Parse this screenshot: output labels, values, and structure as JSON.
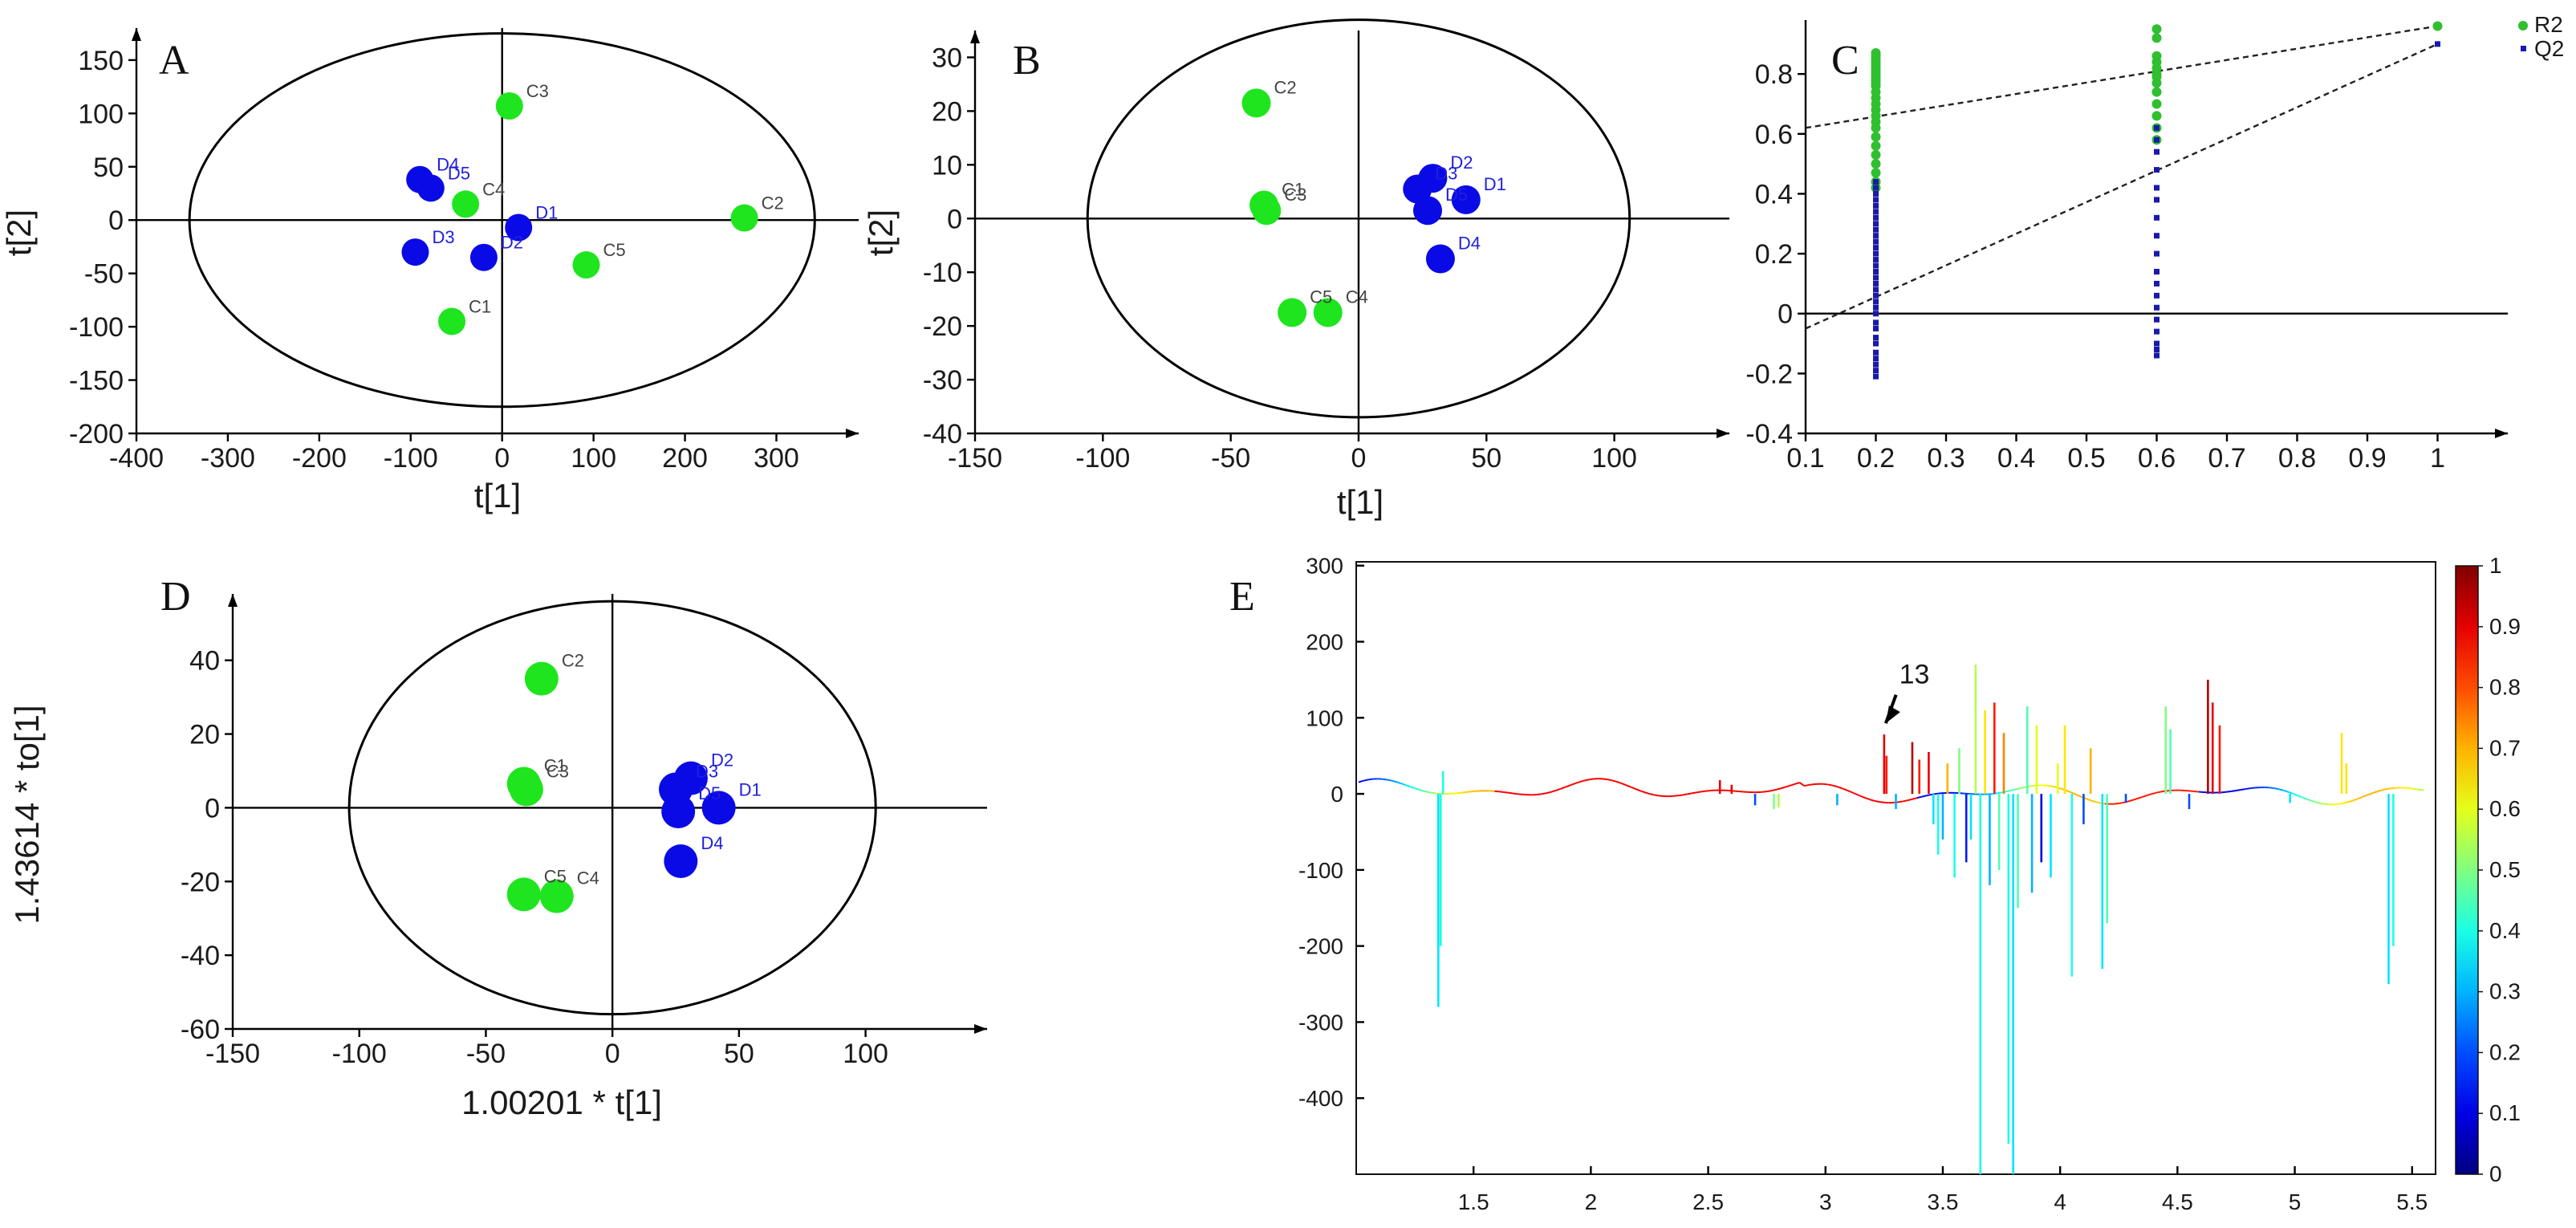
{
  "colors": {
    "control": "#1ee51e",
    "treated": "#0a0ae6",
    "control_label": "#444444",
    "treated_label": "#1f1fdd"
  },
  "chart_data": [
    {
      "panel": "A",
      "type": "scatter",
      "xlabel": "t[1]",
      "ylabel": "t[2]",
      "xlim": [
        -400,
        390
      ],
      "ylim": [
        -200,
        180
      ],
      "xticks": [
        -400,
        -300,
        -200,
        -100,
        0,
        100,
        200,
        300
      ],
      "yticks": [
        -200,
        -150,
        -100,
        -50,
        0,
        50,
        100,
        150
      ],
      "ellipse": {
        "rx": 342,
        "ry": 175
      },
      "points": [
        {
          "label": "C1",
          "group": "control",
          "x": -55,
          "y": -95
        },
        {
          "label": "C2",
          "group": "control",
          "x": 265,
          "y": 2
        },
        {
          "label": "C3",
          "group": "control",
          "x": 8,
          "y": 107
        },
        {
          "label": "C4",
          "group": "control",
          "x": -40,
          "y": 15
        },
        {
          "label": "C5",
          "group": "control",
          "x": 92,
          "y": -42
        },
        {
          "label": "D1",
          "group": "treated",
          "x": 18,
          "y": -7
        },
        {
          "label": "D2",
          "group": "treated",
          "x": -20,
          "y": -35
        },
        {
          "label": "D3",
          "group": "treated",
          "x": -95,
          "y": -30
        },
        {
          "label": "D4",
          "group": "treated",
          "x": -90,
          "y": 38
        },
        {
          "label": "D5",
          "group": "treated",
          "x": -78,
          "y": 30
        }
      ]
    },
    {
      "panel": "B",
      "type": "scatter",
      "xlabel": "t[1]",
      "ylabel": "t[2]",
      "xlim": [
        -150,
        145
      ],
      "ylim": [
        -40,
        35
      ],
      "xticks": [
        -150,
        -100,
        -50,
        0,
        50,
        100
      ],
      "yticks": [
        -40,
        -30,
        -20,
        -10,
        0,
        10,
        20,
        30
      ],
      "ellipse": {
        "rx": 106,
        "ry": 37
      },
      "points": [
        {
          "label": "C1",
          "group": "control",
          "x": -37,
          "y": 2.5
        },
        {
          "label": "C2",
          "group": "control",
          "x": -40,
          "y": 21.5
        },
        {
          "label": "C3",
          "group": "control",
          "x": -36,
          "y": 1.5
        },
        {
          "label": "C4",
          "group": "control",
          "x": -12,
          "y": -17.5
        },
        {
          "label": "C5",
          "group": "control",
          "x": -26,
          "y": -17.5
        },
        {
          "label": "D1",
          "group": "treated",
          "x": 42,
          "y": 3.5
        },
        {
          "label": "D2",
          "group": "treated",
          "x": 29,
          "y": 7.5
        },
        {
          "label": "D3",
          "group": "treated",
          "x": 23,
          "y": 5.5
        },
        {
          "label": "D4",
          "group": "treated",
          "x": 32,
          "y": -7.5
        },
        {
          "label": "D5",
          "group": "treated",
          "x": 27,
          "y": 1.5
        }
      ]
    },
    {
      "panel": "C",
      "type": "scatter",
      "xlim": [
        0.1,
        1.1
      ],
      "ylim": [
        -0.4,
        0.98
      ],
      "xticks": [
        0.1,
        0.2,
        0.3,
        0.4,
        0.5,
        0.6,
        0.7,
        0.8,
        0.9,
        1
      ],
      "yticks": [
        -0.4,
        -0.2,
        0,
        0.2,
        0.4,
        0.6,
        0.8
      ],
      "legend": [
        "R2",
        "Q2"
      ],
      "legend_position": "top-right",
      "series": [
        {
          "name": "R2",
          "color": "#2fbf2f",
          "x": [
            0.2,
            0.2,
            0.2,
            0.2,
            0.2,
            0.2,
            0.2,
            0.2,
            0.2,
            0.2,
            0.2,
            0.2,
            0.2,
            0.2,
            0.2,
            0.2,
            0.2,
            0.2,
            0.2,
            0.2,
            0.2,
            0.2,
            0.2,
            0.2,
            0.2,
            0.2,
            0.6,
            0.6,
            0.6,
            0.6,
            0.6,
            0.6,
            0.6,
            0.6,
            0.6,
            0.6,
            0.6,
            0.6,
            0.6,
            1
          ],
          "y": [
            0.42,
            0.44,
            0.47,
            0.5,
            0.53,
            0.56,
            0.59,
            0.62,
            0.64,
            0.66,
            0.68,
            0.7,
            0.72,
            0.74,
            0.76,
            0.77,
            0.78,
            0.79,
            0.8,
            0.81,
            0.82,
            0.83,
            0.84,
            0.85,
            0.86,
            0.87,
            0.58,
            0.62,
            0.66,
            0.7,
            0.74,
            0.77,
            0.79,
            0.8,
            0.82,
            0.84,
            0.86,
            0.92,
            0.95,
            0.96
          ]
        },
        {
          "name": "Q2",
          "color": "#1a1aa8",
          "x": [
            0.2,
            0.2,
            0.2,
            0.2,
            0.2,
            0.2,
            0.2,
            0.2,
            0.2,
            0.2,
            0.2,
            0.2,
            0.2,
            0.2,
            0.2,
            0.2,
            0.2,
            0.2,
            0.2,
            0.2,
            0.2,
            0.2,
            0.2,
            0.2,
            0.2,
            0.2,
            0.2,
            0.2,
            0.2,
            0.2,
            0.2,
            0.2,
            0.6,
            0.6,
            0.6,
            0.6,
            0.6,
            0.6,
            0.6,
            0.6,
            0.6,
            0.6,
            0.6,
            0.6,
            0.6,
            0.6,
            0.6,
            0.6,
            0.6,
            0.6,
            1
          ],
          "y": [
            -0.21,
            -0.19,
            -0.17,
            -0.15,
            -0.13,
            -0.1,
            -0.08,
            -0.05,
            -0.03,
            0,
            0.02,
            0.04,
            0.06,
            0.08,
            0.1,
            0.12,
            0.14,
            0.16,
            0.18,
            0.2,
            0.22,
            0.24,
            0.26,
            0.28,
            0.3,
            0.32,
            0.34,
            0.36,
            0.38,
            0.4,
            0.42,
            0.44,
            -0.14,
            -0.12,
            -0.1,
            -0.06,
            -0.02,
            0.02,
            0.06,
            0.1,
            0.14,
            0.2,
            0.26,
            0.32,
            0.38,
            0.42,
            0.48,
            0.54,
            0.58,
            0.62,
            0.9
          ]
        }
      ],
      "regression_lines": [
        {
          "name": "R2",
          "intercept_x0": 0.62,
          "point_at_x1": 0.96
        },
        {
          "name": "Q2",
          "intercept_x0": -0.05,
          "point_at_x1": 0.9
        }
      ]
    },
    {
      "panel": "D",
      "type": "scatter",
      "xlabel": "1.00201 * t[1]",
      "ylabel": "1.43614 * to[1]",
      "xlim": [
        -150,
        148
      ],
      "ylim": [
        -60,
        58
      ],
      "xticks": [
        -150,
        -100,
        -50,
        0,
        50,
        100
      ],
      "yticks": [
        -60,
        -40,
        -20,
        0,
        20,
        40
      ],
      "ellipse": {
        "rx": 104,
        "ry": 56
      },
      "points": [
        {
          "label": "C1",
          "group": "control",
          "x": -35,
          "y": 6.5
        },
        {
          "label": "C2",
          "group": "control",
          "x": -28,
          "y": 35
        },
        {
          "label": "C3",
          "group": "control",
          "x": -34,
          "y": 5
        },
        {
          "label": "C4",
          "group": "control",
          "x": -22,
          "y": -24
        },
        {
          "label": "C5",
          "group": "control",
          "x": -35,
          "y": -23.5
        },
        {
          "label": "D1",
          "group": "treated",
          "x": 42,
          "y": 0
        },
        {
          "label": "D2",
          "group": "treated",
          "x": 31,
          "y": 8
        },
        {
          "label": "D3",
          "group": "treated",
          "x": 25,
          "y": 5
        },
        {
          "label": "D4",
          "group": "treated",
          "x": 27,
          "y": -14.5
        },
        {
          "label": "D5",
          "group": "treated",
          "x": 26,
          "y": -1
        }
      ]
    },
    {
      "panel": "E",
      "type": "line",
      "title": "",
      "xlabel": "",
      "ylabel": "",
      "xlim": [
        1.0,
        5.6
      ],
      "ylim": [
        -500,
        305
      ],
      "xticks": [
        1.5,
        2,
        2.5,
        3,
        3.5,
        4,
        4.5,
        5,
        5.5
      ],
      "yticks": [
        300,
        200,
        100,
        0,
        -100,
        -200,
        -300,
        -400
      ],
      "colorbar": {
        "min": 0,
        "max": 1,
        "ticks": [
          0,
          0.1,
          0.2,
          0.3,
          0.4,
          0.5,
          0.6,
          0.7,
          0.8,
          0.9,
          1
        ]
      },
      "annotation": {
        "text": "13",
        "x": 3.28,
        "y": 145,
        "arrow_to_x": 3.25,
        "arrow_to_y": 78
      },
      "peaks": [
        {
          "x": 1.35,
          "y": -280,
          "c": 0.35
        },
        {
          "x": 1.36,
          "y": -200,
          "c": 0.4
        },
        {
          "x": 1.37,
          "y": 30,
          "c": 0.4
        },
        {
          "x": 2.55,
          "y": 18,
          "c": 0.9
        },
        {
          "x": 2.6,
          "y": 12,
          "c": 0.9
        },
        {
          "x": 2.7,
          "y": -15,
          "c": 0.2
        },
        {
          "x": 2.78,
          "y": -20,
          "c": 0.5
        },
        {
          "x": 2.8,
          "y": -18,
          "c": 0.55
        },
        {
          "x": 3.05,
          "y": -15,
          "c": 0.3
        },
        {
          "x": 3.25,
          "y": 78,
          "c": 0.9
        },
        {
          "x": 3.26,
          "y": 50,
          "c": 0.85
        },
        {
          "x": 3.3,
          "y": -20,
          "c": 0.3
        },
        {
          "x": 3.37,
          "y": 68,
          "c": 0.95
        },
        {
          "x": 3.4,
          "y": 45,
          "c": 0.85
        },
        {
          "x": 3.44,
          "y": 55,
          "c": 0.9
        },
        {
          "x": 3.46,
          "y": -40,
          "c": 0.35
        },
        {
          "x": 3.48,
          "y": -80,
          "c": 0.4
        },
        {
          "x": 3.5,
          "y": -60,
          "c": 0.3
        },
        {
          "x": 3.52,
          "y": 40,
          "c": 0.7
        },
        {
          "x": 3.55,
          "y": -110,
          "c": 0.4
        },
        {
          "x": 3.57,
          "y": 60,
          "c": 0.5
        },
        {
          "x": 3.6,
          "y": -90,
          "c": 0.15
        },
        {
          "x": 3.62,
          "y": -60,
          "c": 0.35
        },
        {
          "x": 3.64,
          "y": 170,
          "c": 0.55
        },
        {
          "x": 3.66,
          "y": -500,
          "c": 0.4
        },
        {
          "x": 3.68,
          "y": 110,
          "c": 0.65
        },
        {
          "x": 3.7,
          "y": -120,
          "c": 0.3
        },
        {
          "x": 3.72,
          "y": 120,
          "c": 0.85
        },
        {
          "x": 3.74,
          "y": -100,
          "c": 0.45
        },
        {
          "x": 3.76,
          "y": 80,
          "c": 0.75
        },
        {
          "x": 3.78,
          "y": -460,
          "c": 0.4
        },
        {
          "x": 3.8,
          "y": -500,
          "c": 0.35
        },
        {
          "x": 3.82,
          "y": -150,
          "c": 0.45
        },
        {
          "x": 3.86,
          "y": 115,
          "c": 0.45
        },
        {
          "x": 3.88,
          "y": -130,
          "c": 0.3
        },
        {
          "x": 3.9,
          "y": 90,
          "c": 0.6
        },
        {
          "x": 3.92,
          "y": -90,
          "c": 0.1
        },
        {
          "x": 3.96,
          "y": -110,
          "c": 0.35
        },
        {
          "x": 3.99,
          "y": 40,
          "c": 0.6
        },
        {
          "x": 4.02,
          "y": 90,
          "c": 0.65
        },
        {
          "x": 4.05,
          "y": -240,
          "c": 0.4
        },
        {
          "x": 4.1,
          "y": -40,
          "c": 0.2
        },
        {
          "x": 4.13,
          "y": 60,
          "c": 0.7
        },
        {
          "x": 4.18,
          "y": -230,
          "c": 0.35
        },
        {
          "x": 4.2,
          "y": -170,
          "c": 0.45
        },
        {
          "x": 4.28,
          "y": -12,
          "c": 0.2
        },
        {
          "x": 4.45,
          "y": 115,
          "c": 0.5
        },
        {
          "x": 4.47,
          "y": 85,
          "c": 0.45
        },
        {
          "x": 4.55,
          "y": -20,
          "c": 0.2
        },
        {
          "x": 4.63,
          "y": 150,
          "c": 0.95
        },
        {
          "x": 4.65,
          "y": 120,
          "c": 0.9
        },
        {
          "x": 4.68,
          "y": 90,
          "c": 0.85
        },
        {
          "x": 4.98,
          "y": -12,
          "c": 0.35
        },
        {
          "x": 5.2,
          "y": 80,
          "c": 0.65
        },
        {
          "x": 5.22,
          "y": 40,
          "c": 0.65
        },
        {
          "x": 5.4,
          "y": -250,
          "c": 0.35
        },
        {
          "x": 5.42,
          "y": -200,
          "c": 0.4
        }
      ]
    }
  ]
}
